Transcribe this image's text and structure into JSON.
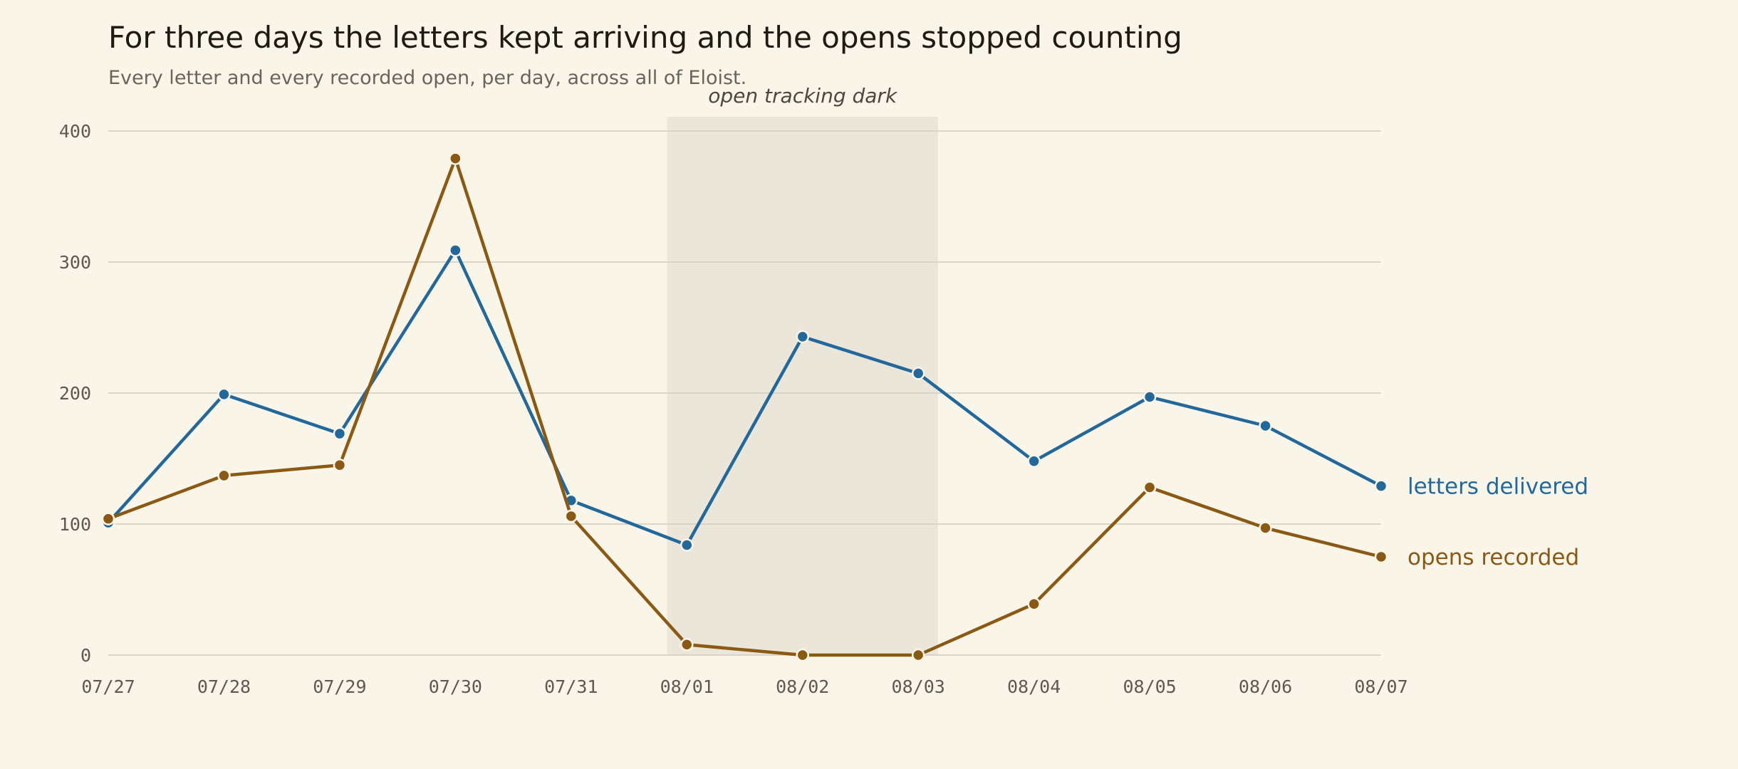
{
  "chart_data": {
    "type": "line",
    "title": "For three days the letters kept arriving and the opens stopped counting",
    "subtitle": "Every letter and every recorded open, per day, across all of Eloist.",
    "xlabel": "",
    "ylabel": "",
    "x": [
      "07/27",
      "07/28",
      "07/29",
      "07/30",
      "07/31",
      "08/01",
      "08/02",
      "08/03",
      "08/04",
      "08/05",
      "08/06",
      "08/07"
    ],
    "y_ticks": [
      "0",
      "100",
      "200",
      "300",
      "400"
    ],
    "ylim": [
      0,
      400
    ],
    "grid": true,
    "legend": "direct labels at line ends",
    "series": [
      {
        "name": "letters delivered",
        "color": "#23689b",
        "values": [
          101,
          199,
          169,
          309,
          118,
          84,
          243,
          215,
          148,
          197,
          175,
          129
        ]
      },
      {
        "name": "opens recorded",
        "color": "#8a5a14",
        "values": [
          104,
          137,
          145,
          379,
          106,
          8,
          0,
          0,
          39,
          128,
          97,
          75
        ]
      }
    ],
    "annotations": [
      {
        "text": "open tracking dark",
        "x_start": "08/01",
        "x_end": "08/03",
        "shade": "#ebe6da"
      }
    ]
  }
}
